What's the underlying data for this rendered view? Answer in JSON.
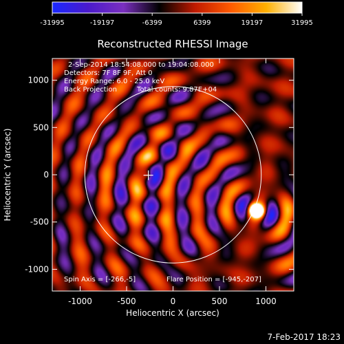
{
  "chart_data": {
    "type": "heatmap",
    "title": "Reconstructed RHESSI Image",
    "xlabel": "Heliocentric X (arcsec)",
    "ylabel": "Heliocentric Y (arcsec)",
    "xlim": [
      -1300,
      1300
    ],
    "ylim": [
      -1230,
      1230
    ],
    "xticks": [
      -1000,
      -500,
      0,
      500,
      1000
    ],
    "yticks": [
      -1000,
      -500,
      0,
      500,
      1000
    ],
    "colorbar": {
      "range": [
        -31995,
        31995
      ],
      "ticks": [
        -31995,
        -19197,
        -6399,
        6399,
        19197,
        31995
      ],
      "tick_labels": [
        "-31995",
        "-19197",
        "-6399",
        "6399",
        "19197",
        "31995"
      ],
      "stops": [
        "#1a28ff",
        "#4a1acc",
        "#7a2fbf",
        "#000000",
        "#c01a00",
        "#ff5a00",
        "#ffb000",
        "#ffffff"
      ]
    },
    "annotations": {
      "time_range": "2-Sep-2014 18:54:08.000 to 19:04:08.000",
      "detectors": "Detectors: 7F 8F 9F, Att 0",
      "energy": "Energy Range: 6.0 - 25.0 keV",
      "method": "Back Projection",
      "counts": "Total counts: 9.87E+04",
      "spin_axis": "Spin Axis = [-266,-5]",
      "flare_position": "Flare Position = [-945,-207]"
    },
    "solar_limb_radius_arcsec": 950,
    "spin_axis": [
      -266,
      -5
    ],
    "bright_source": [
      900,
      -380
    ],
    "footer": "7-Feb-2017 18:23"
  }
}
